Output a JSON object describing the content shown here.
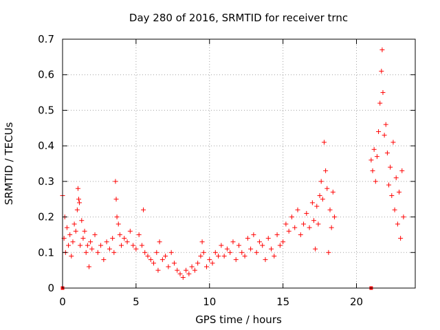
{
  "chart_data": {
    "type": "scatter",
    "title": "Day 280 of 2016, SRMTID for receiver trnc",
    "xlabel": "GPS time / hours",
    "ylabel": "SRMTID / TECUs",
    "xlim": [
      0,
      24
    ],
    "ylim": [
      0,
      0.7
    ],
    "xticks": [
      0,
      5,
      10,
      15,
      20
    ],
    "xtick_labels": [
      "0",
      "5",
      "10",
      "15",
      "20"
    ],
    "yticks": [
      0,
      0.1,
      0.2,
      0.3,
      0.4,
      0.5,
      0.6,
      0.7
    ],
    "ytick_labels": [
      "0",
      "0.1",
      "0.2",
      "0.3",
      "0.4",
      "0.5",
      "0.6",
      "0.7"
    ],
    "grid": true,
    "marker": "plus",
    "color": "#ff0000",
    "series": [
      {
        "name": "SRMTID",
        "points": [
          [
            0.0,
            0.26
          ],
          [
            0.1,
            0.14
          ],
          [
            0.15,
            0.2
          ],
          [
            0.2,
            0.1
          ],
          [
            0.3,
            0.17
          ],
          [
            0.4,
            0.12
          ],
          [
            0.5,
            0.15
          ],
          [
            0.6,
            0.09
          ],
          [
            0.7,
            0.13
          ],
          [
            0.8,
            0.18
          ],
          [
            0.9,
            0.16
          ],
          [
            1.0,
            0.22
          ],
          [
            1.05,
            0.28
          ],
          [
            1.1,
            0.25
          ],
          [
            1.15,
            0.24
          ],
          [
            1.2,
            0.12
          ],
          [
            1.3,
            0.19
          ],
          [
            1.4,
            0.14
          ],
          [
            1.5,
            0.16
          ],
          [
            1.6,
            0.1
          ],
          [
            1.7,
            0.12
          ],
          [
            1.8,
            0.06
          ],
          [
            1.9,
            0.13
          ],
          [
            2.0,
            0.11
          ],
          [
            2.2,
            0.15
          ],
          [
            2.4,
            0.1
          ],
          [
            2.6,
            0.12
          ],
          [
            2.8,
            0.08
          ],
          [
            3.0,
            0.13
          ],
          [
            3.2,
            0.11
          ],
          [
            3.4,
            0.14
          ],
          [
            3.5,
            0.1
          ],
          [
            3.6,
            0.3
          ],
          [
            3.65,
            0.25
          ],
          [
            3.7,
            0.2
          ],
          [
            3.8,
            0.18
          ],
          [
            3.9,
            0.15
          ],
          [
            4.0,
            0.12
          ],
          [
            4.2,
            0.14
          ],
          [
            4.4,
            0.13
          ],
          [
            4.6,
            0.16
          ],
          [
            4.8,
            0.12
          ],
          [
            5.0,
            0.11
          ],
          [
            5.2,
            0.15
          ],
          [
            5.4,
            0.12
          ],
          [
            5.5,
            0.22
          ],
          [
            5.6,
            0.1
          ],
          [
            5.8,
            0.09
          ],
          [
            6.0,
            0.08
          ],
          [
            6.2,
            0.07
          ],
          [
            6.4,
            0.1
          ],
          [
            6.5,
            0.05
          ],
          [
            6.6,
            0.13
          ],
          [
            6.8,
            0.08
          ],
          [
            7.0,
            0.09
          ],
          [
            7.2,
            0.06
          ],
          [
            7.4,
            0.1
          ],
          [
            7.6,
            0.07
          ],
          [
            7.8,
            0.05
          ],
          [
            8.0,
            0.04
          ],
          [
            8.2,
            0.03
          ],
          [
            8.4,
            0.05
          ],
          [
            8.6,
            0.04
          ],
          [
            8.8,
            0.06
          ],
          [
            9.0,
            0.05
          ],
          [
            9.2,
            0.07
          ],
          [
            9.4,
            0.09
          ],
          [
            9.5,
            0.13
          ],
          [
            9.6,
            0.1
          ],
          [
            9.8,
            0.06
          ],
          [
            10.0,
            0.08
          ],
          [
            10.2,
            0.07
          ],
          [
            10.4,
            0.1
          ],
          [
            10.6,
            0.09
          ],
          [
            10.8,
            0.12
          ],
          [
            11.0,
            0.09
          ],
          [
            11.2,
            0.11
          ],
          [
            11.4,
            0.1
          ],
          [
            11.6,
            0.13
          ],
          [
            11.8,
            0.08
          ],
          [
            12.0,
            0.12
          ],
          [
            12.2,
            0.1
          ],
          [
            12.4,
            0.09
          ],
          [
            12.6,
            0.14
          ],
          [
            12.8,
            0.11
          ],
          [
            13.0,
            0.15
          ],
          [
            13.2,
            0.1
          ],
          [
            13.4,
            0.13
          ],
          [
            13.6,
            0.12
          ],
          [
            13.8,
            0.08
          ],
          [
            14.0,
            0.14
          ],
          [
            14.2,
            0.11
          ],
          [
            14.4,
            0.09
          ],
          [
            14.6,
            0.15
          ],
          [
            14.8,
            0.12
          ],
          [
            15.0,
            0.13
          ],
          [
            15.2,
            0.18
          ],
          [
            15.4,
            0.16
          ],
          [
            15.6,
            0.2
          ],
          [
            15.8,
            0.17
          ],
          [
            16.0,
            0.22
          ],
          [
            16.2,
            0.15
          ],
          [
            16.4,
            0.18
          ],
          [
            16.6,
            0.21
          ],
          [
            16.8,
            0.17
          ],
          [
            17.0,
            0.24
          ],
          [
            17.1,
            0.19
          ],
          [
            17.2,
            0.11
          ],
          [
            17.3,
            0.23
          ],
          [
            17.4,
            0.18
          ],
          [
            17.5,
            0.26
          ],
          [
            17.6,
            0.3
          ],
          [
            17.7,
            0.25
          ],
          [
            17.8,
            0.41
          ],
          [
            17.9,
            0.33
          ],
          [
            18.0,
            0.28
          ],
          [
            18.1,
            0.1
          ],
          [
            18.2,
            0.22
          ],
          [
            18.3,
            0.17
          ],
          [
            18.4,
            0.27
          ],
          [
            18.5,
            0.2
          ],
          [
            21.0,
            0.36
          ],
          [
            21.1,
            0.33
          ],
          [
            21.2,
            0.39
          ],
          [
            21.3,
            0.3
          ],
          [
            21.4,
            0.37
          ],
          [
            21.5,
            0.44
          ],
          [
            21.6,
            0.52
          ],
          [
            21.7,
            0.61
          ],
          [
            21.75,
            0.67
          ],
          [
            21.8,
            0.55
          ],
          [
            21.9,
            0.43
          ],
          [
            22.0,
            0.46
          ],
          [
            22.1,
            0.38
          ],
          [
            22.2,
            0.29
          ],
          [
            22.3,
            0.34
          ],
          [
            22.4,
            0.26
          ],
          [
            22.5,
            0.41
          ],
          [
            22.6,
            0.22
          ],
          [
            22.7,
            0.31
          ],
          [
            22.8,
            0.18
          ],
          [
            22.9,
            0.27
          ],
          [
            23.0,
            0.14
          ],
          [
            23.1,
            0.33
          ],
          [
            23.2,
            0.2
          ]
        ]
      }
    ],
    "zero_markers": [
      0.0,
      21.0
    ]
  }
}
